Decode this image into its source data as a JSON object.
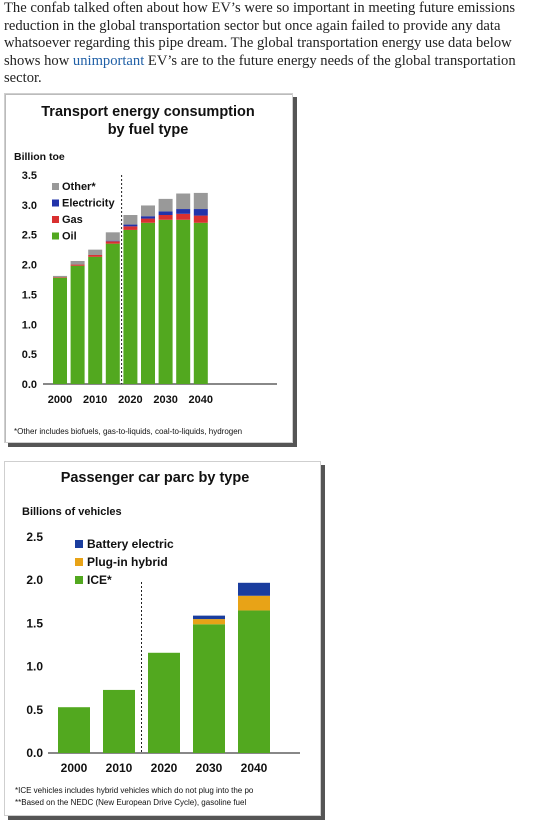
{
  "article": {
    "text_before": "The confab talked often about how EV’s were so important in meeting future emissions reduction in the global transportation sector but once again failed to provide any data whatsoever regarding this pipe dream. The global transportation energy use data below shows how ",
    "link_text": "unimportant",
    "text_after": " EV’s are to the future energy needs of the global transportation sector."
  },
  "chart_data": [
    {
      "type": "bar",
      "stacked": true,
      "title_line1": "Transport energy consumption",
      "title_line2": "by fuel type",
      "ylabel": "Billion toe",
      "ylim": [
        0,
        3.5
      ],
      "yticks": [
        "0.0",
        "0.5",
        "1.0",
        "1.5",
        "2.0",
        "2.5",
        "3.0",
        "3.5"
      ],
      "x": [
        2000,
        2005,
        2010,
        2015,
        2020,
        2025,
        2030,
        2035,
        2040
      ],
      "xticks": [
        "2000",
        "2010",
        "2020",
        "2030",
        "2040"
      ],
      "divider_after_index": 3,
      "series": [
        {
          "name": "Oil",
          "color": "#52a81f",
          "values": [
            1.78,
            1.98,
            2.13,
            2.35,
            2.58,
            2.7,
            2.75,
            2.75,
            2.7
          ]
        },
        {
          "name": "Gas",
          "color": "#d93030",
          "values": [
            0.01,
            0.02,
            0.03,
            0.04,
            0.06,
            0.07,
            0.08,
            0.1,
            0.12
          ]
        },
        {
          "name": "Electricity",
          "color": "#2233aa",
          "values": [
            0.0,
            0.0,
            0.0,
            0.01,
            0.03,
            0.04,
            0.06,
            0.08,
            0.11
          ]
        },
        {
          "name": "Other*",
          "color": "#999999",
          "values": [
            0.02,
            0.06,
            0.09,
            0.14,
            0.16,
            0.18,
            0.21,
            0.26,
            0.27
          ]
        }
      ],
      "legend_order": [
        "Other*",
        "Electricity",
        "Gas",
        "Oil"
      ],
      "legend_position": "top-left",
      "footnote": "*Other includes biofuels, gas-to-liquids, coal-to-liquids, hydrogen"
    },
    {
      "type": "bar",
      "stacked": true,
      "title": "Passenger car parc by type",
      "ylabel": "Billions of vehicles",
      "ylim": [
        0,
        2.5
      ],
      "yticks": [
        "0.0",
        "0.5",
        "1.0",
        "1.5",
        "2.0",
        "2.5"
      ],
      "categories": [
        "2000",
        "2010",
        "2020",
        "2030",
        "2040"
      ],
      "divider_after_index": 1,
      "series": [
        {
          "name": "ICE*",
          "color": "#52a81f",
          "values": [
            0.53,
            0.73,
            1.16,
            1.49,
            1.65
          ]
        },
        {
          "name": "Plug-in hybrid",
          "color": "#e8a317",
          "values": [
            0.0,
            0.0,
            0.0,
            0.06,
            0.17
          ]
        },
        {
          "name": "Battery electric",
          "color": "#1a3d9e",
          "values": [
            0.0,
            0.0,
            0.0,
            0.04,
            0.15
          ]
        }
      ],
      "legend_order": [
        "Battery electric",
        "Plug-in hybrid",
        "ICE*"
      ],
      "legend_position": "top-left",
      "footnote1": "*ICE vehicles includes hybrid vehicles which do not plug into the po",
      "footnote2": "**Based on the NEDC (New European Drive Cycle), gasoline fuel"
    }
  ]
}
